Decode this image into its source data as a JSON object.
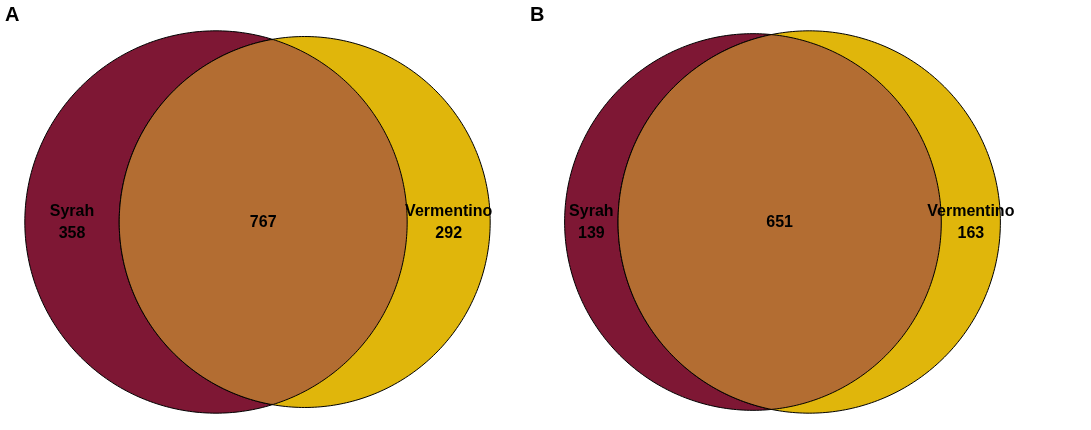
{
  "chart_data": [
    {
      "type": "other",
      "title": "A",
      "categories": [
        "Syrah",
        null,
        "Vermentino"
      ],
      "values": [
        358,
        767,
        292
      ],
      "colors": [
        "#7e1734",
        "#b36d32",
        "#e0b60b"
      ],
      "data_labels": true
    },
    {
      "type": "other",
      "title": "B",
      "categories": [
        "Syrah",
        null,
        "Vermentino"
      ],
      "values": [
        139,
        651,
        163
      ],
      "colors": [
        "#7e1734",
        "#b36d32",
        "#e0b60b"
      ],
      "data_labels": true
    }
  ]
}
